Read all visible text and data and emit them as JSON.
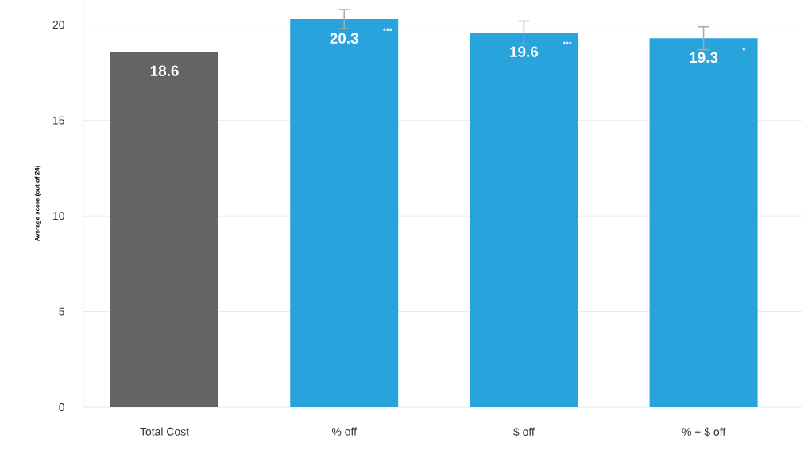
{
  "chart_data": {
    "type": "bar",
    "ylabel": "Average score (out of 24)",
    "categories": [
      "Total Cost",
      "% off",
      "$ off",
      "% + $ off"
    ],
    "values": [
      18.6,
      20.3,
      19.6,
      19.3
    ],
    "colors": [
      "#636466",
      "#29a3dc",
      "#29a3dc",
      "#29a3dc"
    ],
    "errors": [
      null,
      0.5,
      0.6,
      0.6
    ],
    "ylim": [
      0,
      21.3
    ],
    "yticks": [
      0,
      5,
      10,
      15,
      20
    ],
    "grid": "y",
    "data_labels": true,
    "annotations": [
      "***",
      "***",
      "*"
    ]
  }
}
